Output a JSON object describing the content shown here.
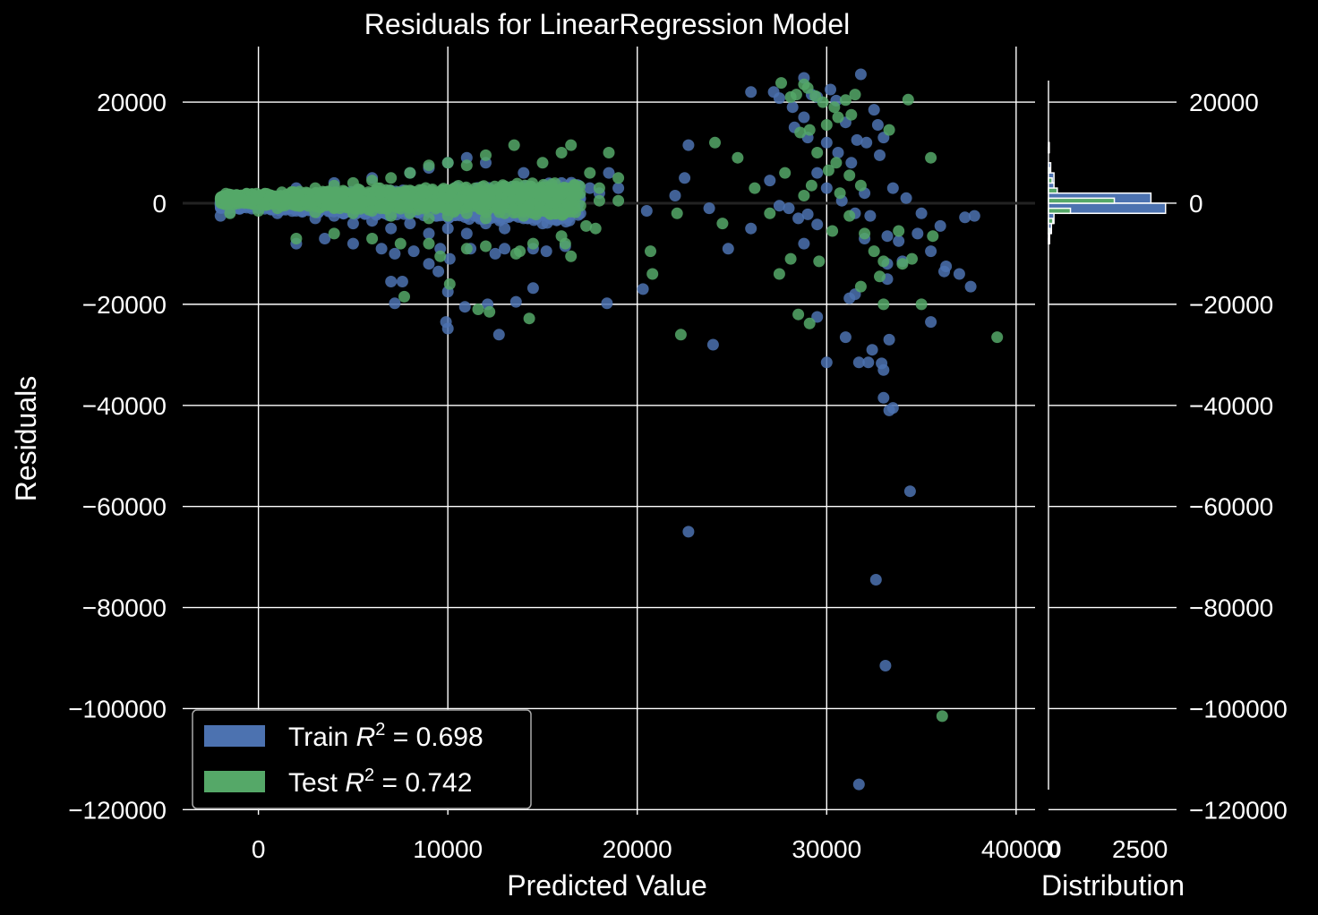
{
  "chart_data": {
    "type": "scatter",
    "title": "Residuals for LinearRegression Model",
    "xlabel": "Predicted Value",
    "ylabel": "Residuals",
    "xlim": [
      -4000,
      41000
    ],
    "ylim": [
      -121000,
      31000
    ],
    "x_ticks": [
      0,
      10000,
      20000,
      30000,
      40000
    ],
    "x_tick_labels": [
      "0",
      "10000",
      "20000",
      "30000",
      "40000"
    ],
    "y_ticks": [
      20000,
      0,
      -20000,
      -40000,
      -60000,
      -80000,
      -100000,
      -120000
    ],
    "y_tick_labels": [
      "20000",
      "0",
      "−20000",
      "−40000",
      "−60000",
      "−80000",
      "−100000",
      "−120000"
    ],
    "grid": true,
    "zero_line": 0,
    "legend": {
      "position": "bottom-left",
      "entries": [
        {
          "label_prefix": "Train ",
          "label_math": "R",
          "label_sup": "2",
          "label_suffix": " = 0.698",
          "color": "#4c72b0"
        },
        {
          "label_prefix": "Test ",
          "label_math": "R",
          "label_sup": "2",
          "label_suffix": " = 0.742",
          "color": "#55a868"
        }
      ]
    },
    "series": [
      {
        "name": "Train",
        "color": "#4c72b0",
        "points": [
          [
            -2000,
            -2500
          ],
          [
            -1500,
            -1800
          ],
          [
            0,
            -1000
          ],
          [
            1000,
            -2000
          ],
          [
            2000,
            -1500
          ],
          [
            3000,
            -3000
          ],
          [
            4000,
            -2500
          ],
          [
            5000,
            -4000
          ],
          [
            6000,
            -3500
          ],
          [
            7000,
            -5000
          ],
          [
            8000,
            -4000
          ],
          [
            9000,
            -6000
          ],
          [
            10000,
            -5000
          ],
          [
            11000,
            -6000
          ],
          [
            12000,
            -4000
          ],
          [
            13000,
            -5000
          ],
          [
            14000,
            -3000
          ],
          [
            15000,
            -4000
          ],
          [
            16000,
            -3000
          ],
          [
            17000,
            -2000
          ],
          [
            18000,
            2000
          ],
          [
            19000,
            3000
          ],
          [
            2000,
            3000
          ],
          [
            4000,
            4000
          ],
          [
            6000,
            5000
          ],
          [
            8000,
            6000
          ],
          [
            9000,
            7000
          ],
          [
            10000,
            8000
          ],
          [
            11000,
            9000
          ],
          [
            12000,
            8000
          ],
          [
            14000,
            6000
          ],
          [
            16000,
            4000
          ],
          [
            17500,
            3000
          ],
          [
            18500,
            6000
          ],
          [
            2000,
            -8000
          ],
          [
            3500,
            -7000
          ],
          [
            5000,
            -8000
          ],
          [
            6500,
            -9000
          ],
          [
            7200,
            -10000
          ],
          [
            8200,
            -9500
          ],
          [
            9000,
            -12000
          ],
          [
            9600,
            -9000
          ],
          [
            10100,
            -11000
          ],
          [
            11200,
            -9000
          ],
          [
            12500,
            -10000
          ],
          [
            13000,
            -9000
          ],
          [
            14500,
            -9000
          ],
          [
            15200,
            -9500
          ],
          [
            16200,
            -8500
          ],
          [
            7000,
            -15500
          ],
          [
            7600,
            -15500
          ],
          [
            7200,
            -19800
          ],
          [
            9500,
            -13500
          ],
          [
            10000,
            -17500
          ],
          [
            10900,
            -20500
          ],
          [
            12100,
            -20000
          ],
          [
            13600,
            -19500
          ],
          [
            10000,
            -24800
          ],
          [
            9900,
            -23500
          ],
          [
            12700,
            -26000
          ],
          [
            14500,
            -16800
          ],
          [
            18400,
            -19800
          ],
          [
            20300,
            -17000
          ],
          [
            20500,
            -1500
          ],
          [
            22000,
            1500
          ],
          [
            22700,
            11500
          ],
          [
            22500,
            5000
          ],
          [
            23800,
            -1000
          ],
          [
            24800,
            -9000
          ],
          [
            24000,
            -28000
          ],
          [
            26000,
            -5000
          ],
          [
            27000,
            4500
          ],
          [
            27500,
            -500
          ],
          [
            28000,
            -1000
          ],
          [
            28500,
            -3000
          ],
          [
            28800,
            -8000
          ],
          [
            29000,
            -2200
          ],
          [
            29500,
            -4200
          ],
          [
            26000,
            22000
          ],
          [
            27200,
            22000
          ],
          [
            27500,
            20800
          ],
          [
            28200,
            19000
          ],
          [
            28800,
            24800
          ],
          [
            29200,
            21500
          ],
          [
            29500,
            21000
          ],
          [
            30200,
            22500
          ],
          [
            30500,
            20300
          ],
          [
            31800,
            25500
          ],
          [
            32500,
            18500
          ],
          [
            32700,
            15500
          ],
          [
            33000,
            13000
          ],
          [
            31000,
            16000
          ],
          [
            30000,
            12000
          ],
          [
            29000,
            13000
          ],
          [
            28800,
            17000
          ],
          [
            28300,
            15000
          ],
          [
            30600,
            10000
          ],
          [
            31600,
            12500
          ],
          [
            32100,
            12000
          ],
          [
            32800,
            9500
          ],
          [
            31300,
            8000
          ],
          [
            29500,
            6000
          ],
          [
            30000,
            3000
          ],
          [
            30800,
            500
          ],
          [
            31500,
            -2000
          ],
          [
            32300,
            -2500
          ],
          [
            33500,
            3000
          ],
          [
            34200,
            1000
          ],
          [
            35000,
            -2000
          ],
          [
            36000,
            -4500
          ],
          [
            33200,
            -6500
          ],
          [
            32000,
            -7000
          ],
          [
            33800,
            -7500
          ],
          [
            34800,
            -6000
          ],
          [
            35500,
            -9500
          ],
          [
            36200,
            -13500
          ],
          [
            37000,
            -14000
          ],
          [
            37600,
            -16500
          ],
          [
            37300,
            -2800
          ],
          [
            37800,
            -2500
          ],
          [
            36300,
            -12500
          ],
          [
            34000,
            -11500
          ],
          [
            33200,
            -12000
          ],
          [
            31500,
            -18000
          ],
          [
            31200,
            -18800
          ],
          [
            29500,
            -22500
          ],
          [
            30000,
            -31500
          ],
          [
            31000,
            -26500
          ],
          [
            31700,
            -31500
          ],
          [
            32400,
            -29000
          ],
          [
            32200,
            -31500
          ],
          [
            32900,
            -31700
          ],
          [
            33000,
            -33000
          ],
          [
            33300,
            -27000
          ],
          [
            33000,
            -38500
          ],
          [
            33300,
            -41000
          ],
          [
            33500,
            -40500
          ],
          [
            34400,
            -57000
          ],
          [
            22700,
            -65000
          ],
          [
            32600,
            -74500
          ],
          [
            33100,
            -91500
          ],
          [
            31700,
            -115000
          ],
          [
            35500,
            -23500
          ],
          [
            32000,
            2000
          ],
          [
            33200,
            -15000
          ]
        ]
      },
      {
        "name": "Test",
        "color": "#55a868",
        "points": [
          [
            -1500,
            -2000
          ],
          [
            0,
            -1500
          ],
          [
            1000,
            -1000
          ],
          [
            2000,
            -500
          ],
          [
            3000,
            -1800
          ],
          [
            4000,
            -1000
          ],
          [
            5000,
            -2000
          ],
          [
            6000,
            -1500
          ],
          [
            7000,
            -2500
          ],
          [
            8000,
            -2000
          ],
          [
            9000,
            -3000
          ],
          [
            10000,
            -2500
          ],
          [
            11000,
            -2000
          ],
          [
            12000,
            -3000
          ],
          [
            13000,
            -2000
          ],
          [
            14000,
            -2500
          ],
          [
            15000,
            -1500
          ],
          [
            16000,
            -2000
          ],
          [
            17000,
            -500
          ],
          [
            18000,
            500
          ],
          [
            19000,
            500
          ],
          [
            1000,
            1000
          ],
          [
            2000,
            2000
          ],
          [
            3000,
            3000
          ],
          [
            4000,
            3500
          ],
          [
            5000,
            4000
          ],
          [
            6000,
            4500
          ],
          [
            7000,
            5000
          ],
          [
            8000,
            6000
          ],
          [
            9000,
            7500
          ],
          [
            10000,
            8000
          ],
          [
            11000,
            7500
          ],
          [
            12000,
            9500
          ],
          [
            13500,
            11500
          ],
          [
            15000,
            8000
          ],
          [
            16000,
            10000
          ],
          [
            16500,
            11500
          ],
          [
            17500,
            6000
          ],
          [
            18500,
            10000
          ],
          [
            19000,
            5000
          ],
          [
            18000,
            3000
          ],
          [
            2000,
            -7000
          ],
          [
            4000,
            -6000
          ],
          [
            6000,
            -7000
          ],
          [
            7500,
            -8000
          ],
          [
            9000,
            -8000
          ],
          [
            9600,
            -10500
          ],
          [
            11000,
            -9000
          ],
          [
            12000,
            -8500
          ],
          [
            13800,
            -9500
          ],
          [
            14500,
            -8000
          ],
          [
            16000,
            -6500
          ],
          [
            16200,
            -8000
          ],
          [
            17300,
            -4500
          ],
          [
            17800,
            -5000
          ],
          [
            16500,
            -10500
          ],
          [
            7700,
            -18500
          ],
          [
            10100,
            -16000
          ],
          [
            11600,
            -21000
          ],
          [
            12200,
            -21500
          ],
          [
            14300,
            -22800
          ],
          [
            13600,
            -10000
          ],
          [
            20700,
            -9500
          ],
          [
            20800,
            -14000
          ],
          [
            22300,
            -26000
          ],
          [
            24100,
            12000
          ],
          [
            25300,
            9000
          ],
          [
            26200,
            3000
          ],
          [
            27000,
            -2000
          ],
          [
            27500,
            -14000
          ],
          [
            27800,
            6000
          ],
          [
            28100,
            -11000
          ],
          [
            28500,
            -22000
          ],
          [
            29100,
            -23800
          ],
          [
            29600,
            -11500
          ],
          [
            27600,
            23800
          ],
          [
            28100,
            21000
          ],
          [
            28400,
            21500
          ],
          [
            28800,
            23500
          ],
          [
            29000,
            22800
          ],
          [
            29400,
            21200
          ],
          [
            29800,
            20000
          ],
          [
            30400,
            19000
          ],
          [
            31000,
            20400
          ],
          [
            31300,
            17500
          ],
          [
            31500,
            21500
          ],
          [
            30600,
            17000
          ],
          [
            30000,
            15500
          ],
          [
            29100,
            14500
          ],
          [
            28600,
            14000
          ],
          [
            29500,
            10000
          ],
          [
            30500,
            8000
          ],
          [
            31200,
            5500
          ],
          [
            31800,
            3500
          ],
          [
            30100,
            6500
          ],
          [
            29200,
            3500
          ],
          [
            30700,
            2000
          ],
          [
            28800,
            1500
          ],
          [
            33300,
            14500
          ],
          [
            34300,
            20500
          ],
          [
            35500,
            9000
          ],
          [
            31200,
            -2500
          ],
          [
            32000,
            -6000
          ],
          [
            32500,
            -9500
          ],
          [
            33000,
            -11500
          ],
          [
            32800,
            -14500
          ],
          [
            31800,
            -16500
          ],
          [
            33800,
            -5500
          ],
          [
            34500,
            -11000
          ],
          [
            35000,
            -20000
          ],
          [
            35600,
            -6500
          ],
          [
            30300,
            -5500
          ],
          [
            34000,
            -12000
          ],
          [
            33000,
            -20000
          ],
          [
            39000,
            -26500
          ],
          [
            36100,
            -101500
          ],
          [
            22100,
            -2000
          ],
          [
            24500,
            -4000
          ]
        ]
      }
    ],
    "histogram": {
      "xlabel": "Distribution",
      "x_ticks": [
        0,
        2500
      ],
      "x_tick_labels": [
        "0",
        "2500"
      ],
      "xlim": [
        0,
        3500
      ],
      "bins": [
        {
          "y0": 10000,
          "y1": 12000,
          "train": 20,
          "test": 10
        },
        {
          "y0": 6000,
          "y1": 8000,
          "train": 60,
          "test": 40
        },
        {
          "y0": 4000,
          "y1": 6000,
          "train": 150,
          "test": 100
        },
        {
          "y0": 2000,
          "y1": 4000,
          "train": 150,
          "test": 240
        },
        {
          "y0": 0,
          "y1": 2000,
          "train": 2800,
          "test": 1800
        },
        {
          "y0": -2000,
          "y1": 0,
          "train": 3200,
          "test": 600
        },
        {
          "y0": -4000,
          "y1": -2000,
          "train": 150,
          "test": 120
        },
        {
          "y0": -6000,
          "y1": -4000,
          "train": 80,
          "test": 40
        },
        {
          "y0": -8000,
          "y1": -6000,
          "train": 30,
          "test": 20
        }
      ]
    }
  }
}
